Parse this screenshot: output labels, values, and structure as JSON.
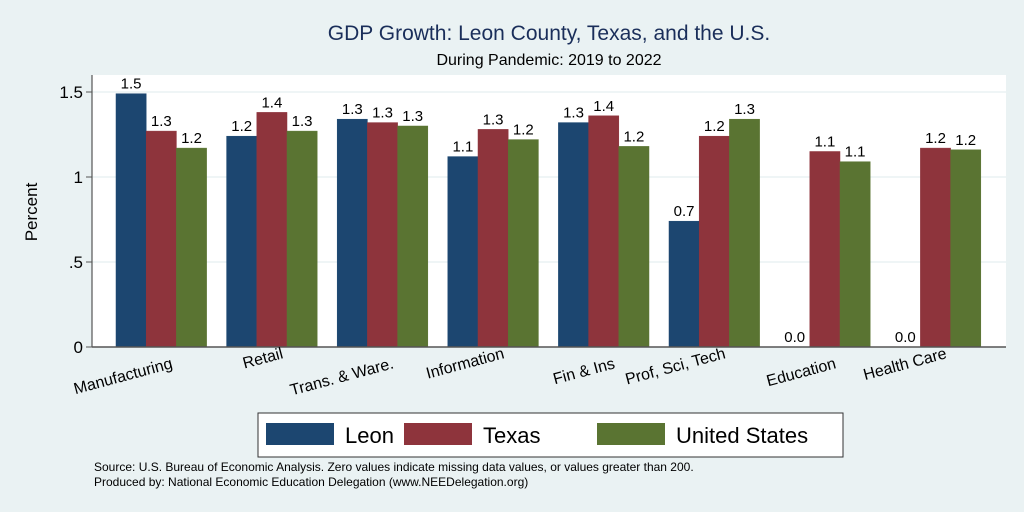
{
  "chart_data": {
    "type": "bar",
    "title": "GDP Growth: Leon County, Texas, and the U.S.",
    "subtitle": "During Pandemic: 2019 to 2022",
    "xlabel": "",
    "ylabel": "Percent",
    "ylim": [
      0,
      1.6
    ],
    "yticks": [
      0,
      0.5,
      1,
      1.5
    ],
    "ytick_labels": [
      "0",
      ".5",
      "1",
      "1.5"
    ],
    "grid": true,
    "legend_position": "bottom-center",
    "categories": [
      "Manufacturing",
      "Retail",
      "Trans. & Ware.",
      "Information",
      "Fin & Ins",
      "Prof, Sci, Tech",
      "Education",
      "Health Care"
    ],
    "series": [
      {
        "name": "Leon",
        "color": "#1c4670",
        "values": [
          1.49,
          1.24,
          1.34,
          1.12,
          1.32,
          0.74,
          0.0,
          0.0
        ],
        "labels": [
          "1.5",
          "1.2",
          "1.3",
          "1.1",
          "1.3",
          "0.7",
          "0.0",
          "0.0"
        ]
      },
      {
        "name": "Texas",
        "color": "#8e343c",
        "values": [
          1.27,
          1.38,
          1.32,
          1.28,
          1.36,
          1.24,
          1.15,
          1.17
        ],
        "labels": [
          "1.3",
          "1.4",
          "1.3",
          "1.3",
          "1.4",
          "1.2",
          "1.1",
          "1.2"
        ]
      },
      {
        "name": "United States",
        "color": "#5a7432",
        "values": [
          1.17,
          1.27,
          1.3,
          1.22,
          1.18,
          1.34,
          1.09,
          1.16
        ],
        "labels": [
          "1.2",
          "1.3",
          "1.3",
          "1.2",
          "1.2",
          "1.3",
          "1.1",
          "1.2"
        ]
      }
    ],
    "notes": [
      "Source: U.S. Bureau of Economic Analysis. Zero values indicate missing data values, or values greater than 200.",
      "Produced by: National Economic Education Delegation (www.NEEDelegation.org)"
    ]
  },
  "colors": {
    "background": "#eaf2f3",
    "plot_background": "#ffffff",
    "gridline": "#eaf2f3",
    "title": "#1a2e5a"
  }
}
